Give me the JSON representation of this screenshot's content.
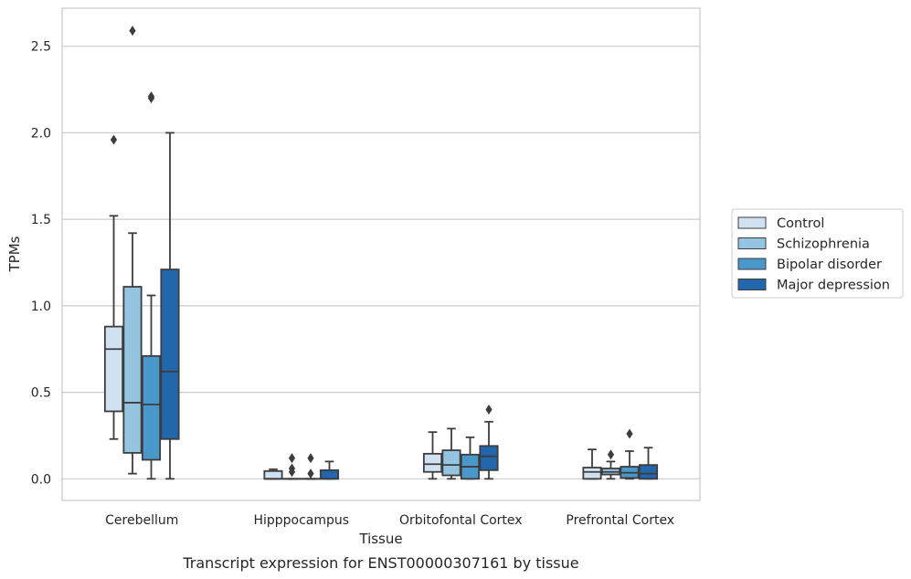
{
  "caption": "Transcript expression for ENST00000307161 by tissue",
  "chart_data": {
    "type": "box",
    "xlabel": "Tissue",
    "ylabel": "TPMs",
    "ylim": [
      -0.125,
      2.72
    ],
    "yticks": [
      0.0,
      0.5,
      1.0,
      1.5,
      2.0,
      2.5
    ],
    "ytick_labels": [
      "0.0",
      "0.5",
      "1.0",
      "1.5",
      "2.0",
      "2.5"
    ],
    "grid": "horizontal",
    "legend_position": "outside-right",
    "categories": [
      "Cerebellum",
      "Hipppocampus",
      "Orbitofontal Cortex",
      "Prefrontal Cortex"
    ],
    "series": [
      {
        "name": "Control",
        "color": "#d0e1f2",
        "boxes": [
          {
            "whislo": 0.23,
            "q1": 0.39,
            "med": 0.75,
            "q3": 0.88,
            "whishi": 1.52,
            "fliers": [
              1.96
            ]
          },
          {
            "whislo": 0.0,
            "q1": 0.0,
            "med": 0.0,
            "q3": 0.045,
            "whishi": 0.055,
            "fliers": []
          },
          {
            "whislo": 0.0,
            "q1": 0.04,
            "med": 0.085,
            "q3": 0.145,
            "whishi": 0.27,
            "fliers": []
          },
          {
            "whislo": 0.0,
            "q1": 0.0,
            "med": 0.04,
            "q3": 0.065,
            "whishi": 0.17,
            "fliers": []
          }
        ]
      },
      {
        "name": "Schizophrenia",
        "color": "#94c4df",
        "boxes": [
          {
            "whislo": 0.03,
            "q1": 0.15,
            "med": 0.44,
            "q3": 1.11,
            "whishi": 1.42,
            "fliers": [
              2.59
            ]
          },
          {
            "whislo": 0.0,
            "q1": 0.0,
            "med": 0.0,
            "q3": 0.0,
            "whishi": 0.0,
            "fliers": [
              0.04,
              0.06,
              0.12
            ]
          },
          {
            "whislo": 0.0,
            "q1": 0.02,
            "med": 0.08,
            "q3": 0.165,
            "whishi": 0.29,
            "fliers": []
          },
          {
            "whislo": 0.0,
            "q1": 0.025,
            "med": 0.04,
            "q3": 0.06,
            "whishi": 0.1,
            "fliers": [
              0.14
            ]
          }
        ]
      },
      {
        "name": "Bipolar disorder",
        "color": "#4a98c9",
        "boxes": [
          {
            "whislo": 0.0,
            "q1": 0.11,
            "med": 0.43,
            "q3": 0.71,
            "whishi": 1.06,
            "fliers": [
              2.2,
              2.21
            ]
          },
          {
            "whislo": 0.0,
            "q1": 0.0,
            "med": 0.0,
            "q3": 0.0,
            "whishi": 0.0,
            "fliers": [
              0.03,
              0.12
            ]
          },
          {
            "whislo": 0.0,
            "q1": 0.0,
            "med": 0.07,
            "q3": 0.14,
            "whishi": 0.24,
            "fliers": []
          },
          {
            "whislo": 0.0,
            "q1": 0.005,
            "med": 0.035,
            "q3": 0.07,
            "whishi": 0.16,
            "fliers": [
              0.26
            ]
          }
        ]
      },
      {
        "name": "Major depression",
        "color": "#2266ac",
        "boxes": [
          {
            "whislo": 0.0,
            "q1": 0.23,
            "med": 0.62,
            "q3": 1.21,
            "whishi": 2.0,
            "fliers": []
          },
          {
            "whislo": 0.0,
            "q1": 0.0,
            "med": 0.0,
            "q3": 0.05,
            "whishi": 0.1,
            "fliers": []
          },
          {
            "whislo": 0.0,
            "q1": 0.05,
            "med": 0.13,
            "q3": 0.19,
            "whishi": 0.33,
            "fliers": [
              0.4
            ]
          },
          {
            "whislo": 0.0,
            "q1": 0.0,
            "med": 0.03,
            "q3": 0.08,
            "whishi": 0.18,
            "fliers": []
          }
        ]
      }
    ]
  }
}
